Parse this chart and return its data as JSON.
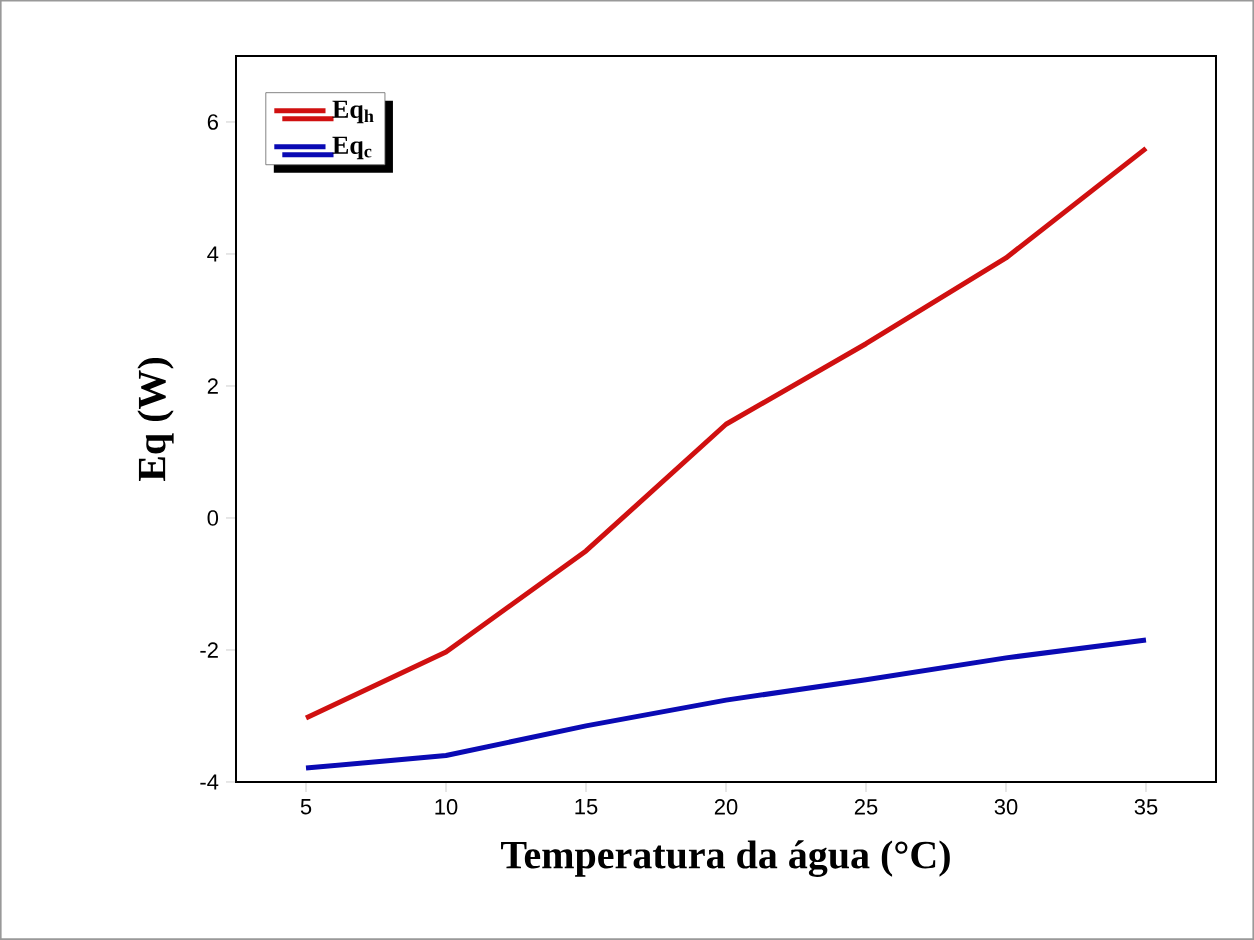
{
  "chart_data": {
    "type": "line",
    "xlabel": "Temperatura da água (°C)",
    "ylabel": "Eq (W)",
    "x": [
      5,
      10,
      15,
      20,
      25,
      30,
      35
    ],
    "series": [
      {
        "name": "Eq$_{h}$",
        "color": "#d01010",
        "values": [
          -3.03,
          -2.03,
          -0.5,
          1.42,
          2.64,
          3.94,
          5.6
        ]
      },
      {
        "name": "Eq$_{c}$",
        "color": "#0a0ab4",
        "values": [
          -3.79,
          -3.6,
          -3.15,
          -2.76,
          -2.45,
          -2.12,
          -1.85
        ]
      }
    ],
    "xlim": [
      2.5,
      37.5
    ],
    "ylim": [
      -4,
      7
    ],
    "xticks": [
      5,
      10,
      15,
      20,
      25,
      30,
      35
    ],
    "yticks": [
      -4,
      -2,
      0,
      2,
      4,
      6
    ],
    "legend": "top left",
    "grid": false,
    "marker": "none",
    "line_style": "solid"
  }
}
